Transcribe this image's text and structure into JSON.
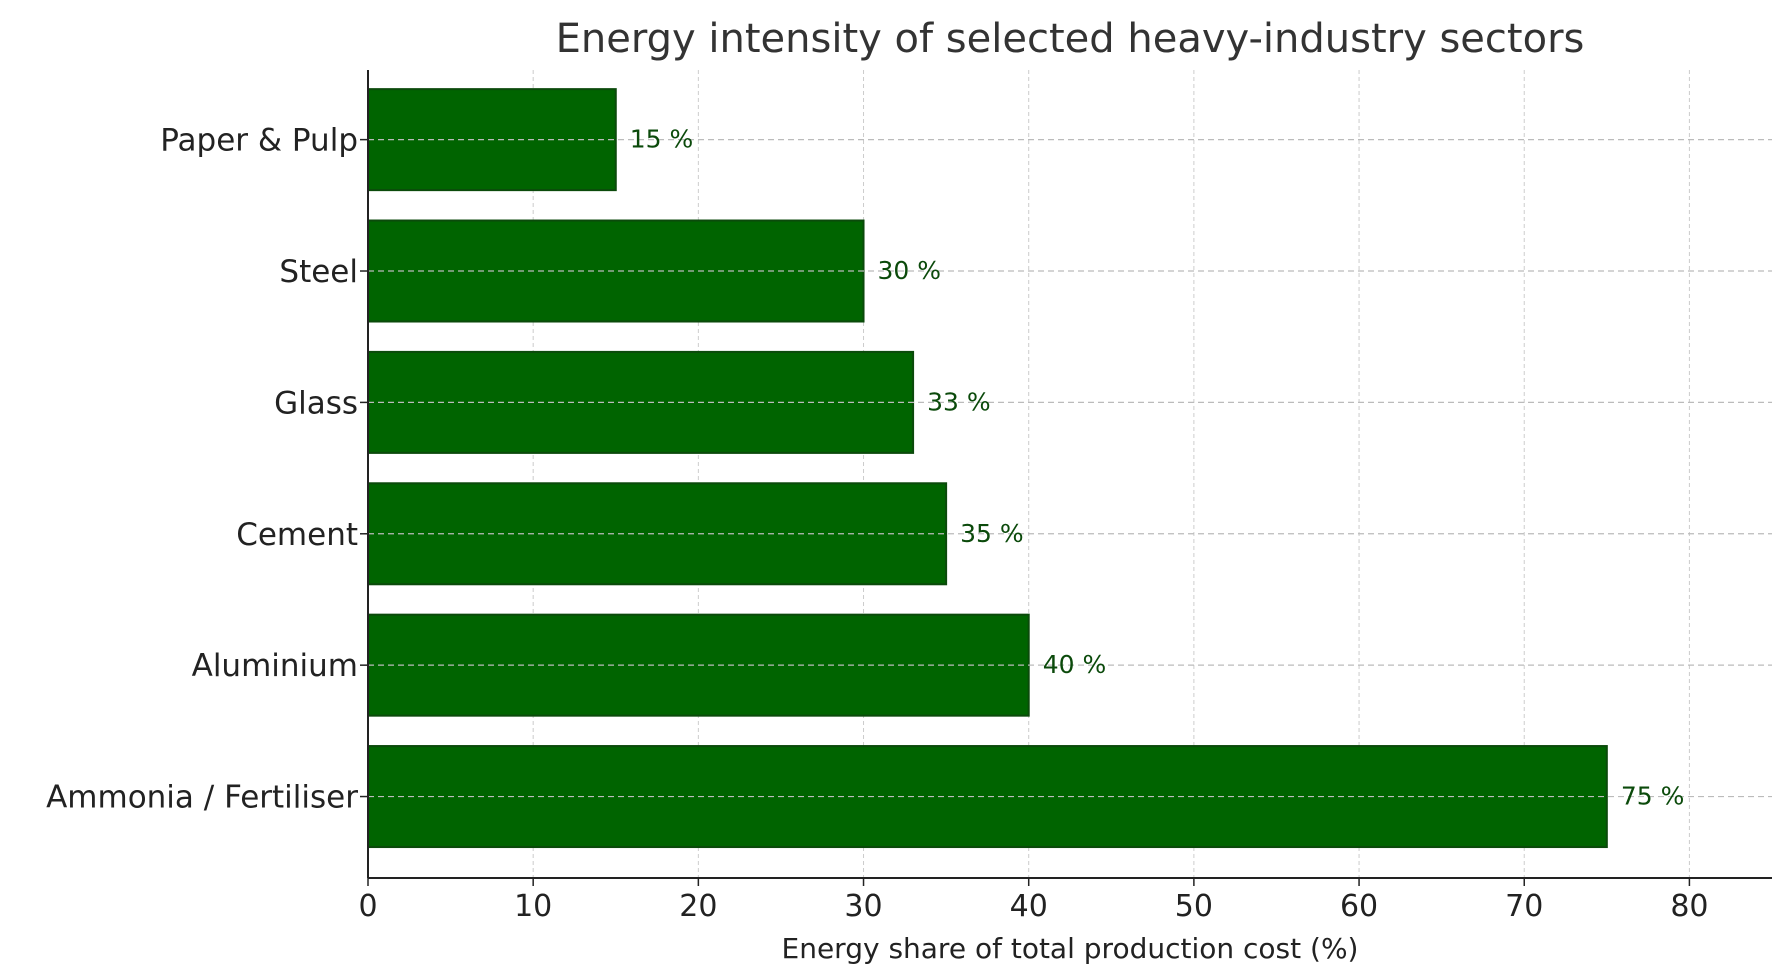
{
  "chart_data": {
    "type": "bar",
    "orientation": "horizontal",
    "title": "Energy intensity of selected heavy-industry sectors",
    "xlabel": "Energy share of total production cost (%)",
    "ylabel": "",
    "categories": [
      "Ammonia / Fertiliser",
      "Aluminium",
      "Cement",
      "Glass",
      "Steel",
      "Paper & Pulp"
    ],
    "values": [
      75,
      40,
      35,
      33,
      30,
      15
    ],
    "data_labels": [
      "75 %",
      "40 %",
      "35 %",
      "33 %",
      "30 %",
      "15 %"
    ],
    "xlim": [
      0,
      85
    ],
    "xticks": [
      0,
      10,
      20,
      30,
      40,
      50,
      60,
      70,
      80
    ],
    "xtick_labels": [
      "0",
      "10",
      "20",
      "30",
      "40",
      "50",
      "60",
      "70",
      "80"
    ],
    "grid": true,
    "bar_color": "#006400",
    "bar_edge_color": "#0b4a0b",
    "label_color": "#0b4a0b"
  }
}
